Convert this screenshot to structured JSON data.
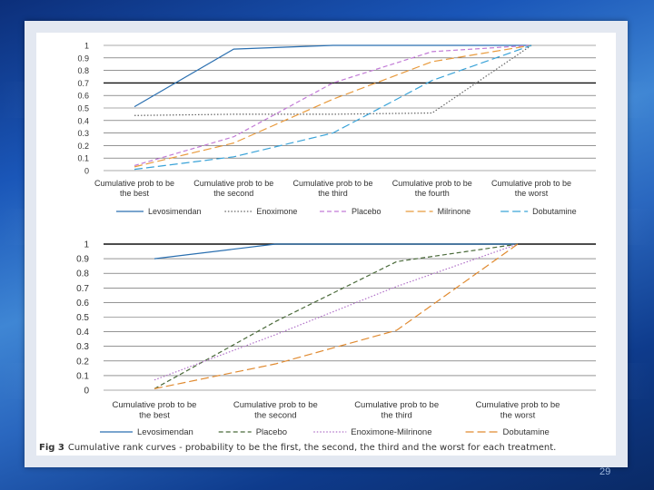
{
  "slide": {
    "caption_label": "Fig 3",
    "caption_text": "Cumulative rank curves - probability to be the first, the second, the third and the worst for each treatment.",
    "page_number": "29"
  },
  "chart_data": [
    {
      "type": "line",
      "categories": [
        "Cumulative prob to be the best",
        "Cumulative prob to be the second",
        "Cumulative prob to be the third",
        "Cumulative prob to be the fourth",
        "Cumulative prob to be the worst"
      ],
      "ylim": [
        0,
        1
      ],
      "yticks": [
        "0",
        "0.1",
        "0.2",
        "0.3",
        "0.4",
        "0.5",
        "0.6",
        "0.7",
        "0.8",
        "0.9",
        "1"
      ],
      "grid": true,
      "legend_position": "bottom",
      "series": [
        {
          "name": "Levosimendan",
          "color": "#2a6fb0",
          "dash": "solid",
          "values": [
            0.51,
            0.97,
            1.0,
            1.0,
            1.0
          ]
        },
        {
          "name": "Enoximone",
          "color": "#666666",
          "dash": "dotted",
          "values": [
            0.44,
            0.45,
            0.45,
            0.46,
            1.0
          ]
        },
        {
          "name": "Placebo",
          "color": "#c27bd6",
          "dash": "dashed",
          "values": [
            0.04,
            0.27,
            0.7,
            0.95,
            1.0
          ]
        },
        {
          "name": "Milrinone",
          "color": "#e89a3c",
          "dash": "longdash",
          "values": [
            0.03,
            0.22,
            0.57,
            0.87,
            1.0
          ]
        },
        {
          "name": "Dobutamine",
          "color": "#3aa3d8",
          "dash": "longdash",
          "values": [
            0.01,
            0.11,
            0.3,
            0.72,
            1.0
          ]
        }
      ]
    },
    {
      "type": "line",
      "categories": [
        "Cumulative prob to be the best",
        "Cumulative prob to be the second",
        "Cumulative prob to be the third",
        "Cumulative prob to be the worst"
      ],
      "ylim": [
        0,
        1
      ],
      "yticks": [
        "0",
        "0.1",
        "0.2",
        "0.3",
        "0.4",
        "0.5",
        "0.6",
        "0.7",
        "0.8",
        "0.9",
        "1"
      ],
      "grid": true,
      "legend_position": "bottom",
      "series": [
        {
          "name": "Levosimendan",
          "color": "#2a6fb0",
          "dash": "solid",
          "values": [
            0.9,
            1.0,
            1.0,
            1.0
          ]
        },
        {
          "name": "Placebo",
          "color": "#4a6a3a",
          "dash": "dashed",
          "values": [
            0.01,
            0.47,
            0.88,
            1.0
          ]
        },
        {
          "name": "Enoximone-Milrinone",
          "color": "#b070c8",
          "dash": "dotted",
          "values": [
            0.07,
            0.38,
            0.71,
            1.0
          ]
        },
        {
          "name": "Dobutamine",
          "color": "#e08a30",
          "dash": "longdash",
          "values": [
            0.01,
            0.18,
            0.41,
            1.0
          ]
        }
      ]
    }
  ]
}
